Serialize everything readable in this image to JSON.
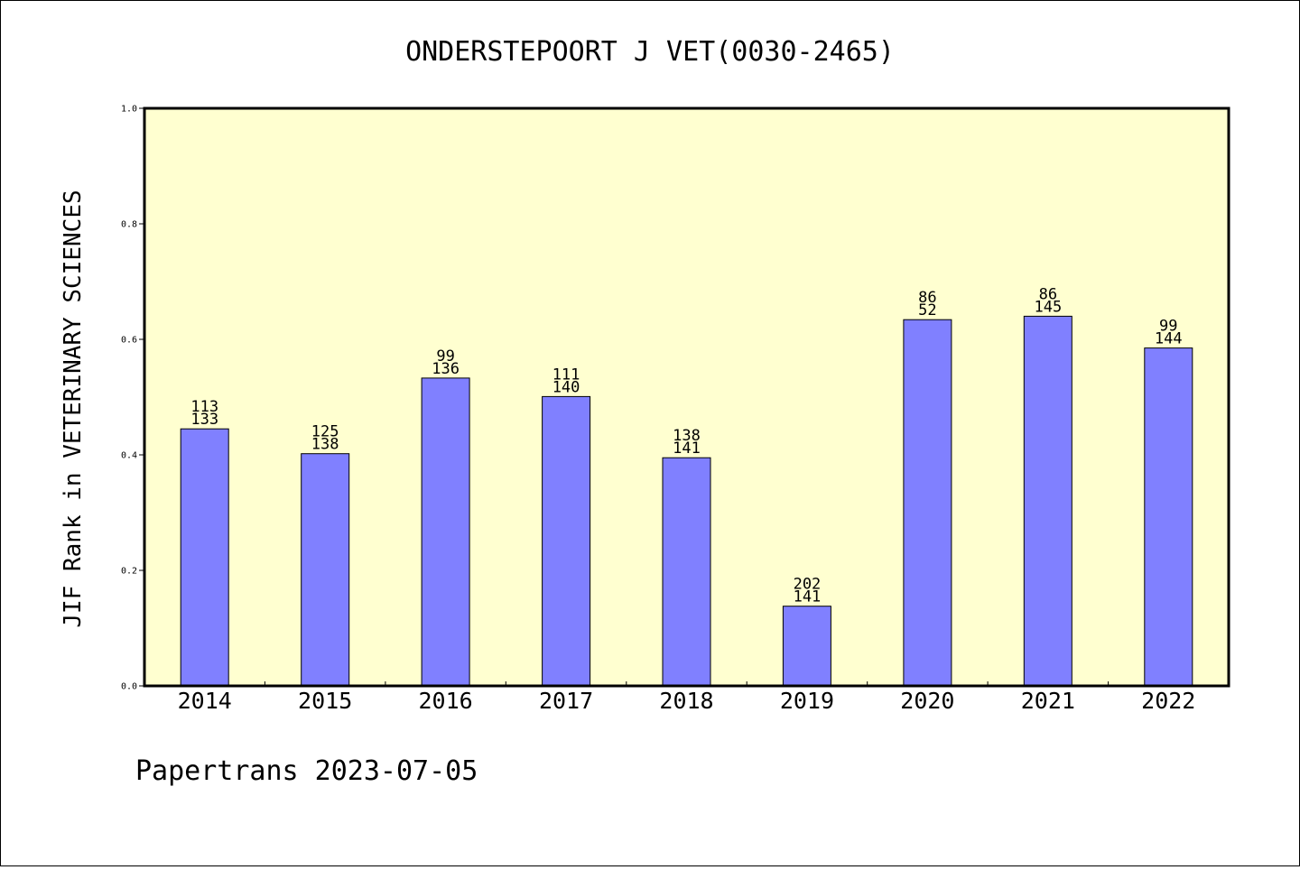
{
  "chart_data": {
    "type": "bar",
    "title": "ONDERSTEPOORT J VET(0030-2465)",
    "xlabel": "",
    "ylabel": "JIF Rank in VETERINARY SCIENCES",
    "ylim": [
      0.0,
      1.0
    ],
    "yticks": [
      "0.0",
      "0.2",
      "0.4",
      "0.6",
      "0.8",
      "1.0"
    ],
    "grid": false,
    "categories": [
      "2014",
      "2015",
      "2016",
      "2017",
      "2018",
      "2019",
      "2020",
      "2021",
      "2022"
    ],
    "values": [
      0.445,
      0.402,
      0.533,
      0.501,
      0.395,
      0.138,
      0.634,
      0.64,
      0.585
    ],
    "labels_top": [
      "113",
      "125",
      "99",
      "111",
      "138",
      "202",
      "86",
      "86",
      "99"
    ],
    "labels_bottom": [
      "133",
      "138",
      "136",
      "140",
      "141",
      "141",
      "52",
      "145",
      "144"
    ],
    "bar_color": "#8080ff",
    "plot_background": "#ffffd0"
  },
  "footer": "Papertrans 2023-07-05"
}
